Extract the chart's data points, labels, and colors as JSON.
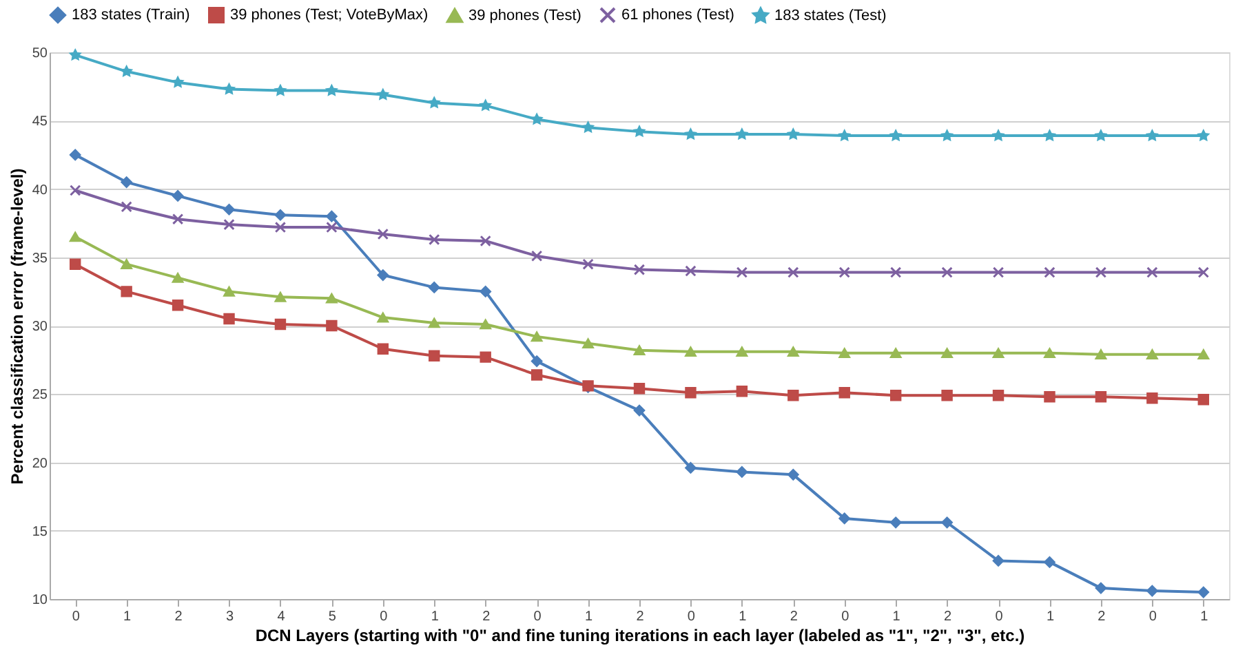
{
  "chart_data": {
    "type": "line",
    "xlabel": "DCN Layers (starting with \"0\" and fine tuning iterations in each layer (labeled as \"1\", \"2\", \"3\", etc.)",
    "ylabel": "Percent   classification   error  (frame-level)",
    "categories": [
      "0",
      "1",
      "2",
      "3",
      "4",
      "5",
      "0",
      "1",
      "2",
      "0",
      "1",
      "2",
      "0",
      "1",
      "2",
      "0",
      "1",
      "2",
      "0",
      "1",
      "2",
      "0",
      "1"
    ],
    "series": [
      {
        "name": "183 states (Train)",
        "color": "#4a7ebb",
        "marker": "diamond",
        "values": [
          42.5,
          40.5,
          39.5,
          38.5,
          38.1,
          38.0,
          33.7,
          32.8,
          32.5,
          27.4,
          25.5,
          23.8,
          19.6,
          19.3,
          19.1,
          15.9,
          15.6,
          15.6,
          12.8,
          12.7,
          10.8,
          10.6,
          10.5
        ]
      },
      {
        "name": "39 phones (Test; VoteByMax)",
        "color": "#be4b48",
        "marker": "square",
        "values": [
          34.5,
          32.5,
          31.5,
          30.5,
          30.1,
          30.0,
          28.3,
          27.8,
          27.7,
          26.4,
          25.6,
          25.4,
          25.1,
          25.2,
          24.9,
          25.1,
          24.9,
          24.9,
          24.9,
          24.8,
          24.8,
          24.7,
          24.6
        ]
      },
      {
        "name": "39 phones (Test)",
        "color": "#98b954",
        "marker": "triangle",
        "values": [
          36.5,
          34.5,
          33.5,
          32.5,
          32.1,
          32.0,
          30.6,
          30.2,
          30.1,
          29.2,
          28.7,
          28.2,
          28.1,
          28.1,
          28.1,
          28.0,
          28.0,
          28.0,
          28.0,
          28.0,
          27.9,
          27.9,
          27.9
        ]
      },
      {
        "name": "61 phones (Test)",
        "color": "#7d60a0",
        "marker": "cross",
        "values": [
          39.9,
          38.7,
          37.8,
          37.4,
          37.2,
          37.2,
          36.7,
          36.3,
          36.2,
          35.1,
          34.5,
          34.1,
          34.0,
          33.9,
          33.9,
          33.9,
          33.9,
          33.9,
          33.9,
          33.9,
          33.9,
          33.9,
          33.9
        ]
      },
      {
        "name": "183 states (Test)",
        "color": "#46aac5",
        "marker": "star",
        "values": [
          49.8,
          48.6,
          47.8,
          47.3,
          47.2,
          47.2,
          46.9,
          46.3,
          46.1,
          45.1,
          44.5,
          44.2,
          44.0,
          44.0,
          44.0,
          43.9,
          43.9,
          43.9,
          43.9,
          43.9,
          43.9,
          43.9,
          43.9
        ]
      }
    ],
    "ylim": [
      10,
      50
    ],
    "yticks": [
      10,
      15,
      20,
      25,
      30,
      35,
      40,
      45,
      50
    ],
    "grid": "y",
    "legend": "top",
    "line_style": "solid"
  }
}
